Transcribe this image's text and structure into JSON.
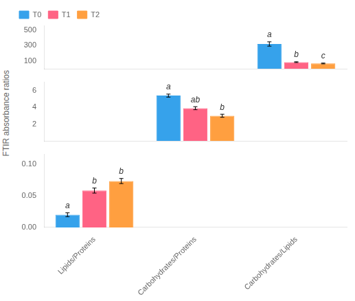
{
  "chart_data": [
    {
      "type": "bar",
      "categories": [
        "Lipids/Proteins",
        "Carbohydrates/Proteins",
        "Carbohydrates/Lipids"
      ],
      "series": [
        {
          "name": "T0",
          "color": "#36a2eb",
          "values": [
            null,
            null,
            320
          ],
          "errors": [
            null,
            null,
            28
          ],
          "annotations": [
            null,
            null,
            "a"
          ]
        },
        {
          "name": "T1",
          "color": "#ff6384",
          "values": [
            null,
            null,
            85
          ],
          "errors": [
            null,
            null,
            5
          ],
          "annotations": [
            null,
            null,
            "b"
          ]
        },
        {
          "name": "T2",
          "color": "#ff9f40",
          "values": [
            null,
            null,
            68
          ],
          "errors": [
            null,
            null,
            5
          ],
          "annotations": [
            null,
            null,
            "c"
          ]
        }
      ],
      "ylim": [
        0,
        560
      ],
      "yticks": [
        100,
        300,
        500
      ],
      "grid": false,
      "legend": "upper left",
      "tick_labels": "y"
    },
    {
      "type": "bar",
      "categories": [
        "Lipids/Proteins",
        "Carbohydrates/Proteins",
        "Carbohydrates/Lipids"
      ],
      "series": [
        {
          "name": "T0",
          "color": "#36a2eb",
          "values": [
            null,
            5.4,
            null
          ],
          "errors": [
            null,
            0.18,
            null
          ],
          "annotations": [
            null,
            "a",
            null
          ]
        },
        {
          "name": "T1",
          "color": "#ff6384",
          "values": [
            null,
            3.9,
            null
          ],
          "errors": [
            null,
            0.18,
            null
          ],
          "annotations": [
            null,
            "ab",
            null
          ]
        },
        {
          "name": "T2",
          "color": "#ff9f40",
          "values": [
            null,
            3.0,
            null
          ],
          "errors": [
            null,
            0.18,
            null
          ],
          "annotations": [
            null,
            "b",
            null
          ]
        }
      ],
      "ylim": [
        0,
        7
      ],
      "yticks": [
        2,
        4,
        6
      ],
      "grid": false,
      "tick_labels": "y",
      "ylabel": "FTIR absorbance ratios"
    },
    {
      "type": "bar",
      "categories": [
        "Lipids/Proteins",
        "Carbohydrates/Proteins",
        "Carbohydrates/Lipids"
      ],
      "series": [
        {
          "name": "T0",
          "color": "#36a2eb",
          "values": [
            0.02,
            null,
            null
          ],
          "errors": [
            0.003,
            null,
            null
          ],
          "annotations": [
            "a",
            null,
            null
          ]
        },
        {
          "name": "T1",
          "color": "#ff6384",
          "values": [
            0.058,
            null,
            null
          ],
          "errors": [
            0.004,
            null,
            null
          ],
          "annotations": [
            "b",
            null,
            null
          ]
        },
        {
          "name": "T2",
          "color": "#ff9f40",
          "values": [
            0.073,
            null,
            null
          ],
          "errors": [
            0.004,
            null,
            null
          ],
          "annotations": [
            "b",
            null,
            null
          ]
        }
      ],
      "ylim": [
        0,
        0.115
      ],
      "yticks": [
        {
          "value": 0,
          "label": "0.00"
        },
        0.05,
        {
          "value": 0.1,
          "label": "0.10"
        }
      ],
      "grid": false
    }
  ]
}
